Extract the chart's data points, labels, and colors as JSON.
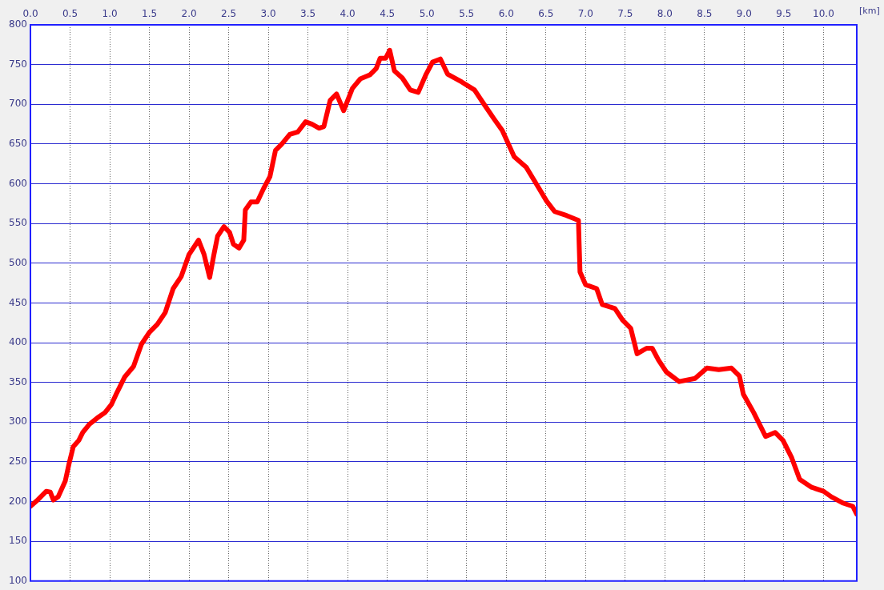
{
  "chart_data": {
    "type": "line",
    "xlabel": "[km]",
    "x": [
      0,
      0.08,
      0.15,
      0.2,
      0.25,
      0.29,
      0.35,
      0.44,
      0.49,
      0.54,
      0.61,
      0.66,
      0.74,
      0.84,
      0.94,
      1.02,
      1.09,
      1.19,
      1.3,
      1.4,
      1.5,
      1.6,
      1.7,
      1.8,
      1.9,
      2,
      2.12,
      2.19,
      2.26,
      2.31,
      2.36,
      2.44,
      2.51,
      2.56,
      2.63,
      2.69,
      2.71,
      2.78,
      2.86,
      2.94,
      3.02,
      3.09,
      3.17,
      3.27,
      3.37,
      3.47,
      3.55,
      3.64,
      3.7,
      3.78,
      3.86,
      3.95,
      4.06,
      4.16,
      4.28,
      4.36,
      4.41,
      4.48,
      4.53,
      4.59,
      4.69,
      4.79,
      4.89,
      4.99,
      5.07,
      5.17,
      5.26,
      5.44,
      5.6,
      5.72,
      5.85,
      5.95,
      6.1,
      6.25,
      6.39,
      6.51,
      6.61,
      6.76,
      6.91,
      6.93,
      7,
      7.14,
      7.21,
      7.37,
      7.47,
      7.57,
      7.65,
      7.77,
      7.84,
      7.92,
      8.02,
      8.18,
      8.38,
      8.53,
      8.68,
      8.84,
      8.94,
      8.99,
      9.12,
      9.27,
      9.39,
      9.49,
      9.6,
      9.7,
      9.85,
      10,
      10.1,
      10.25,
      10.37,
      10.42
    ],
    "series": [
      {
        "color": "#ff0000",
        "values": [
          194,
          201,
          208,
          213,
          212,
          202,
          206,
          226,
          249,
          269,
          277,
          287,
          297,
          305,
          312,
          322,
          337,
          357,
          370,
          398,
          413,
          423,
          438,
          468,
          483,
          511,
          529,
          511,
          482,
          509,
          534,
          546,
          539,
          524,
          519,
          529,
          567,
          577,
          577,
          594,
          609,
          642,
          650,
          662,
          665,
          678,
          675,
          670,
          672,
          705,
          713,
          692,
          720,
          732,
          737,
          745,
          758,
          758,
          768,
          742,
          733,
          718,
          715,
          738,
          753,
          757,
          738,
          728,
          718,
          700,
          681,
          667,
          634,
          621,
          598,
          578,
          565,
          560,
          554,
          489,
          473,
          468,
          448,
          443,
          428,
          418,
          386,
          393,
          393,
          378,
          363,
          351,
          355,
          368,
          366,
          368,
          358,
          335,
          312,
          282,
          287,
          277,
          255,
          228,
          218,
          213,
          206,
          198,
          194,
          184
        ]
      }
    ],
    "xlim": [
      0,
      10.42
    ],
    "xticks": [
      {
        "value": 0,
        "label": "0.0"
      },
      0.5,
      {
        "value": 1,
        "label": "1.0"
      },
      1.5,
      {
        "value": 2,
        "label": "2.0"
      },
      2.5,
      {
        "value": 3,
        "label": "3.0"
      },
      3.5,
      {
        "value": 4,
        "label": "4.0"
      },
      4.5,
      {
        "value": 5,
        "label": "5.0"
      },
      5.5,
      {
        "value": 6,
        "label": "6.0"
      },
      6.5,
      {
        "value": 7,
        "label": "7.0"
      },
      7.5,
      {
        "value": 8,
        "label": "8.0"
      },
      8.5,
      {
        "value": 9,
        "label": "9.0"
      },
      9.5,
      {
        "value": 10,
        "label": "10.0"
      }
    ],
    "ylim": [
      100,
      800
    ],
    "yticks": [
      100,
      150,
      200,
      250,
      300,
      350,
      400,
      450,
      500,
      550,
      600,
      650,
      700,
      750,
      800
    ],
    "grid": true,
    "legend": false,
    "marker": "none",
    "line_style": "solid"
  }
}
